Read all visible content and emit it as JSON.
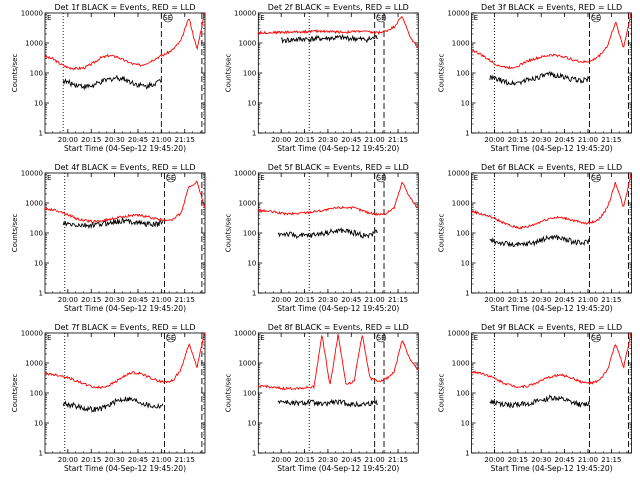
{
  "chart_data": [
    {
      "type": "line",
      "detector": "1f",
      "title": "Det 1f BLACK = Events, RED = LLD",
      "ylabel": "Counts/sec",
      "xlabel": "Start Time (04-Sep-12 19:45:20)",
      "xticks": [
        "20:00",
        "20:15",
        "20:30",
        "20:45",
        "21:00",
        "21:15"
      ],
      "yticks": [
        "1",
        "10",
        "100",
        "1000",
        "10000"
      ],
      "ylim": [
        1,
        10000
      ],
      "yscale": "log",
      "dotted_line": "19:57",
      "dashed_lines": [
        "21:00",
        "21:26"
      ],
      "annotation": "SE",
      "series": [
        {
          "color": "#ff0000",
          "start": "19:45",
          "end": "21:28",
          "values": [
            360,
            300,
            200,
            150,
            140,
            150,
            210,
            320,
            380,
            350,
            260,
            200,
            180,
            230,
            320,
            420,
            600,
            1200,
            7000,
            600,
            12000
          ]
        },
        {
          "color": "#000000",
          "start": "19:57",
          "end": "21:00",
          "values": [
            55,
            45,
            40,
            35,
            38,
            50,
            60,
            70,
            65,
            50,
            40,
            35,
            45,
            55
          ]
        }
      ]
    },
    {
      "type": "line",
      "detector": "2f",
      "title": "Det 2f BLACK = Events, RED = LLD",
      "ylabel": "Counts/sec",
      "xlabel": "Start Time (04-Sep-12 19:45:20)",
      "xticks": [
        "20:00",
        "20:15",
        "20:30",
        "20:45",
        "21:00",
        "21:15"
      ],
      "yticks": [
        "1",
        "10",
        "100",
        "1000",
        "10000"
      ],
      "ylim": [
        1,
        10000
      ],
      "yscale": "log",
      "dotted_line": "20:18",
      "dashed_lines": [
        "21:00",
        "21:06"
      ],
      "annotation": "SE",
      "series": [
        {
          "color": "#ff0000",
          "start": "19:45",
          "end": "21:28",
          "values": [
            2200,
            2200,
            2250,
            2300,
            2300,
            2350,
            2400,
            2450,
            2500,
            2400,
            2350,
            2300,
            2400,
            2500,
            2300,
            2200,
            2500,
            3500,
            8000,
            1500,
            700
          ]
        },
        {
          "color": "#000000",
          "start": "20:00",
          "end": "21:02",
          "values": [
            1200,
            1250,
            1300,
            1350,
            1350,
            1400,
            1420,
            1450,
            1500,
            1450,
            1400,
            1300,
            1350,
            1600
          ]
        }
      ]
    },
    {
      "type": "line",
      "detector": "3f",
      "title": "Det 3f BLACK = Events, RED = LLD",
      "ylabel": "Counts/sec",
      "xlabel": "Start Time (04-Sep-12 19:45:20)",
      "xticks": [
        "20:00",
        "20:15",
        "20:30",
        "20:45",
        "21:00",
        "21:15"
      ],
      "yticks": [
        "1",
        "10",
        "100",
        "1000",
        "10000"
      ],
      "ylim": [
        1,
        10000
      ],
      "yscale": "log",
      "dotted_line": "20:00",
      "dashed_lines": [
        "21:01",
        "21:26"
      ],
      "annotation": "SE",
      "series": [
        {
          "color": "#ff0000",
          "start": "19:45",
          "end": "21:28",
          "values": [
            600,
            450,
            300,
            200,
            160,
            150,
            180,
            250,
            300,
            350,
            400,
            380,
            320,
            260,
            230,
            250,
            380,
            800,
            5000,
            700,
            12000
          ]
        },
        {
          "color": "#000000",
          "start": "19:57",
          "end": "21:01",
          "values": [
            70,
            60,
            50,
            45,
            50,
            60,
            70,
            80,
            90,
            80,
            70,
            60,
            55,
            65
          ]
        }
      ]
    },
    {
      "type": "line",
      "detector": "4f",
      "title": "Det 4f BLACK = Events, RED = LLD",
      "ylabel": "Counts/sec",
      "xlabel": "Start Time (04-Sep-12 19:45:20)",
      "xticks": [
        "20:00",
        "20:15",
        "20:30",
        "20:45",
        "21:00",
        "21:15"
      ],
      "yticks": [
        "1",
        "10",
        "100",
        "1000",
        "10000"
      ],
      "ylim": [
        1,
        10000
      ],
      "yscale": "log",
      "dotted_line": "19:58",
      "dashed_lines": [
        "21:02",
        "21:26"
      ],
      "annotation": "SE",
      "series": [
        {
          "color": "#ff0000",
          "start": "19:45",
          "end": "21:28",
          "values": [
            650,
            600,
            520,
            400,
            300,
            260,
            240,
            250,
            280,
            320,
            360,
            390,
            380,
            340,
            290,
            270,
            290,
            450,
            3500,
            5000,
            700
          ]
        },
        {
          "color": "#000000",
          "start": "19:57",
          "end": "21:01",
          "values": [
            200,
            190,
            180,
            175,
            180,
            200,
            220,
            240,
            250,
            240,
            220,
            200,
            190,
            230
          ]
        }
      ]
    },
    {
      "type": "line",
      "detector": "5f",
      "title": "Det 5f BLACK = Events, RED = LLD",
      "ylabel": "Counts/sec",
      "xlabel": "Start Time (04-Sep-12 19:45:20)",
      "xticks": [
        "20:00",
        "20:15",
        "20:30",
        "20:45",
        "21:00",
        "21:15"
      ],
      "yticks": [
        "1",
        "10",
        "100",
        "1000",
        "10000"
      ],
      "ylim": [
        1,
        10000
      ],
      "yscale": "log",
      "dotted_line": "20:18",
      "dashed_lines": [
        "21:00",
        "21:06"
      ],
      "annotation": "SE",
      "series": [
        {
          "color": "#ff0000",
          "start": "19:45",
          "end": "21:28",
          "values": [
            550,
            540,
            500,
            450,
            430,
            450,
            480,
            520,
            560,
            620,
            700,
            720,
            680,
            560,
            460,
            420,
            450,
            700,
            5000,
            1500,
            600
          ]
        },
        {
          "color": "#000000",
          "start": "19:58",
          "end": "21:02",
          "values": [
            90,
            95,
            85,
            80,
            80,
            90,
            100,
            110,
            120,
            115,
            100,
            85,
            80,
            130
          ]
        }
      ]
    },
    {
      "type": "line",
      "detector": "6f",
      "title": "Det 6f BLACK = Events, RED = LLD",
      "ylabel": "Counts/sec",
      "xlabel": "Start Time (04-Sep-12 19:45:20)",
      "xticks": [
        "20:00",
        "20:15",
        "20:30",
        "20:45",
        "21:00",
        "21:15"
      ],
      "yticks": [
        "1",
        "10",
        "100",
        "1000",
        "10000"
      ],
      "ylim": [
        1,
        10000
      ],
      "yscale": "log",
      "dotted_line": "20:00",
      "dashed_lines": [
        "21:01",
        "21:26"
      ],
      "annotation": "SE",
      "series": [
        {
          "color": "#ff0000",
          "start": "19:45",
          "end": "21:28",
          "values": [
            550,
            450,
            380,
            300,
            220,
            170,
            150,
            160,
            200,
            260,
            320,
            330,
            300,
            250,
            210,
            220,
            300,
            700,
            5000,
            700,
            12000
          ]
        },
        {
          "color": "#000000",
          "start": "19:57",
          "end": "21:01",
          "values": [
            55,
            50,
            45,
            40,
            40,
            45,
            50,
            60,
            75,
            70,
            60,
            50,
            45,
            55
          ]
        }
      ]
    },
    {
      "type": "line",
      "detector": "7f",
      "title": "Det 7f BLACK = Events, RED = LLD",
      "ylabel": "Counts/sec",
      "xlabel": "Start Time (04-Sep-12 19:45:20)",
      "xticks": [
        "20:00",
        "20:15",
        "20:30",
        "20:45",
        "21:00",
        "21:15"
      ],
      "yticks": [
        "1",
        "10",
        "100",
        "1000",
        "10000"
      ],
      "ylim": [
        1,
        10000
      ],
      "yscale": "log",
      "dotted_line": "19:58",
      "dashed_lines": [
        "21:02",
        "21:26"
      ],
      "annotation": "SE",
      "series": [
        {
          "color": "#ff0000",
          "start": "19:45",
          "end": "21:28",
          "values": [
            450,
            420,
            380,
            320,
            250,
            200,
            160,
            150,
            180,
            250,
            380,
            480,
            450,
            340,
            260,
            230,
            260,
            600,
            4500,
            700,
            12000
          ]
        },
        {
          "color": "#000000",
          "start": "19:57",
          "end": "21:01",
          "values": [
            45,
            40,
            35,
            30,
            28,
            30,
            40,
            55,
            65,
            60,
            50,
            40,
            35,
            40
          ]
        }
      ]
    },
    {
      "type": "line",
      "detector": "8f",
      "title": "Det 8f BLACK = Events, RED = LLD",
      "ylabel": "Counts/sec",
      "xlabel": "Start Time (04-Sep-12 19:45:20)",
      "xticks": [
        "20:00",
        "20:15",
        "20:30",
        "20:45",
        "21:00",
        "21:15"
      ],
      "yticks": [
        "1",
        "10",
        "100",
        "1000",
        "10000"
      ],
      "ylim": [
        1,
        10000
      ],
      "yscale": "log",
      "dotted_line": "20:18",
      "dashed_lines": [
        "21:00",
        "21:06"
      ],
      "annotation": "SE",
      "series": [
        {
          "color": "#ff0000",
          "start": "19:45",
          "end": "21:28",
          "values": [
            160,
            170,
            150,
            140,
            140,
            145,
            150,
            160,
            9000,
            170,
            9000,
            200,
            240,
            9000,
            300,
            250,
            300,
            500,
            6000,
            1200,
            600
          ]
        },
        {
          "color": "#000000",
          "start": "19:58",
          "end": "21:02",
          "values": [
            55,
            50,
            45,
            45,
            50,
            45,
            40,
            50,
            48,
            45,
            40,
            42,
            45,
            50
          ]
        }
      ]
    },
    {
      "type": "line",
      "detector": "9f",
      "title": "Det 9f BLACK = Events, RED = LLD",
      "ylabel": "Counts/sec",
      "xlabel": "Start Time (04-Sep-12 19:45:20)",
      "xticks": [
        "20:00",
        "20:15",
        "20:30",
        "20:45",
        "21:00",
        "21:15"
      ],
      "yticks": [
        "1",
        "10",
        "100",
        "1000",
        "10000"
      ],
      "ylim": [
        1,
        10000
      ],
      "yscale": "log",
      "dotted_line": "20:00",
      "dashed_lines": [
        "21:01",
        "21:26"
      ],
      "annotation": "SE",
      "series": [
        {
          "color": "#ff0000",
          "start": "19:45",
          "end": "21:28",
          "values": [
            500,
            480,
            400,
            300,
            220,
            180,
            160,
            170,
            210,
            280,
            350,
            400,
            360,
            280,
            220,
            210,
            260,
            600,
            4500,
            700,
            12000
          ]
        },
        {
          "color": "#000000",
          "start": "19:57",
          "end": "21:01",
          "values": [
            50,
            45,
            40,
            40,
            42,
            45,
            50,
            60,
            70,
            65,
            55,
            45,
            40,
            45
          ]
        }
      ]
    }
  ]
}
